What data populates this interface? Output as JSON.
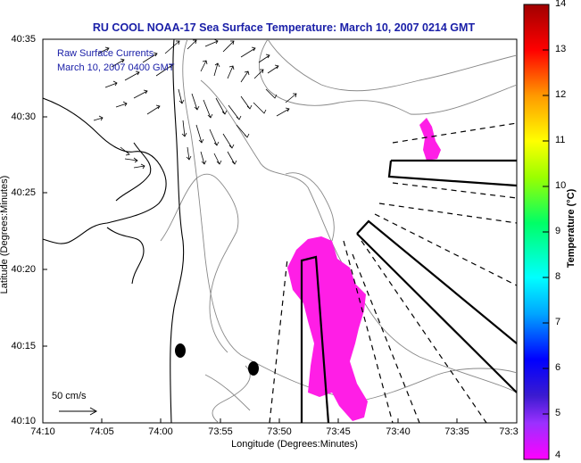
{
  "title": "RU COOL  NOAA-17  Sea Surface Temperature:  March 10, 2007 0214 GMT",
  "inset": {
    "line1": "Raw Surface Currents",
    "line2": "March 10, 2007 0400 GMT"
  },
  "x_axis": {
    "title": "Longitude (Degrees:Minutes)",
    "ticks": [
      "74:10",
      "74:05",
      "74:00",
      "73:55",
      "73:50",
      "73:45",
      "73:40",
      "73:35",
      "73:3"
    ]
  },
  "y_axis": {
    "title": "Latitude (Degrees:Minutes)",
    "ticks": [
      "40:35",
      "40:30",
      "40:25",
      "40:20",
      "40:15",
      "40:10"
    ]
  },
  "scale_arrow": {
    "label": "50 cm/s"
  },
  "colorbar": {
    "title": "Temperature (°C)",
    "ticks": [
      "14",
      "13",
      "12",
      "11",
      "10",
      "9",
      "8",
      "7",
      "6",
      "5",
      "4"
    ],
    "range": [
      4,
      14
    ]
  },
  "colors": {
    "title": "#1b20a8",
    "sst_patch": "#ff1ee6",
    "land_outline": "#000000",
    "bathymetry": "#888888"
  }
}
